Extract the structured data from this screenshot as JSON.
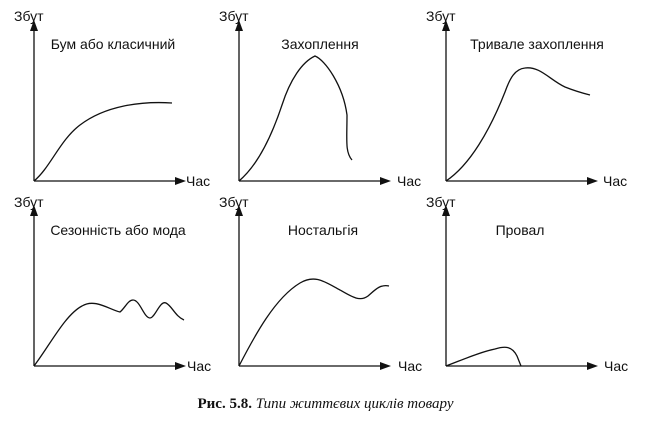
{
  "axis_labels": {
    "y": "Збут",
    "x": "Час"
  },
  "panels": [
    {
      "title": "Бум або класичний",
      "curve_icon": "boom-curve"
    },
    {
      "title": "Захоплення",
      "curve_icon": "fad-curve"
    },
    {
      "title": "Тривале захоплення",
      "curve_icon": "extended-fad-curve"
    },
    {
      "title": "Сезонність або мода",
      "curve_icon": "seasonal-curve"
    },
    {
      "title": "Ностальгія",
      "curve_icon": "nostalgia-curve"
    },
    {
      "title": "Провал",
      "curve_icon": "flop-curve"
    }
  ],
  "caption": {
    "number": "Рис. 5.8.",
    "text": "Типи життєвих циклів товару"
  },
  "colors": {
    "ink": "#111111",
    "background": "#ffffff"
  }
}
